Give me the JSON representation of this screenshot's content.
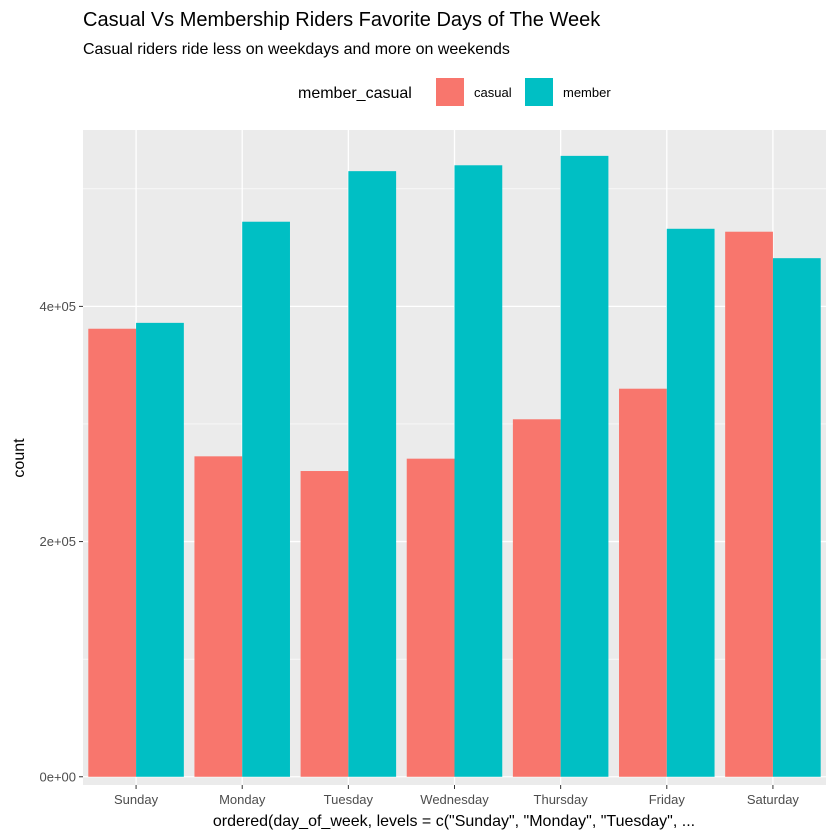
{
  "chart_data": {
    "type": "bar",
    "title": "Casual Vs Membership Riders Favorite Days of The Week",
    "subtitle": "Casual riders ride less on weekdays and more on weekends",
    "xlabel": "ordered(day_of_week, levels = c(\"Sunday\", \"Monday\", \"Tuesday\", ...",
    "ylabel": "count",
    "categories": [
      "Sunday",
      "Monday",
      "Tuesday",
      "Wednesday",
      "Thursday",
      "Friday",
      "Saturday"
    ],
    "series": [
      {
        "name": "casual",
        "color": "#F8766D",
        "values": [
          381000,
          272500,
          260000,
          270500,
          304000,
          330000,
          463500
        ]
      },
      {
        "name": "member",
        "color": "#00BFC4",
        "values": [
          386000,
          472000,
          515000,
          520000,
          528000,
          466000,
          441000
        ]
      }
    ],
    "ylim": [
      -7000,
      550000
    ],
    "yticks": [
      0,
      200000,
      400000
    ],
    "ytick_labels": [
      "0e+00",
      "2e+05",
      "4e+05"
    ],
    "legend": {
      "title": "member_casual",
      "position": "top"
    },
    "grid": true
  }
}
